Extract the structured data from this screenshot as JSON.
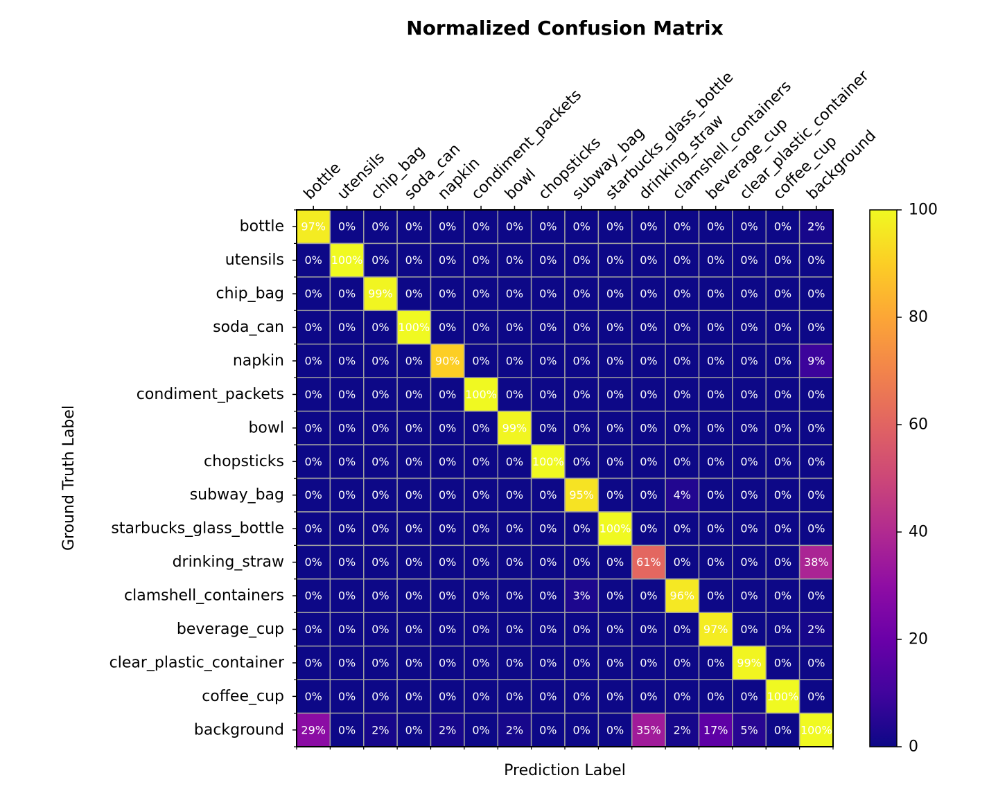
{
  "chart_data": {
    "type": "heatmap",
    "title": "Normalized Confusion Matrix",
    "xlabel": "Prediction Label",
    "ylabel": "Ground Truth Label",
    "x_categories": [
      "bottle",
      "utensils",
      "chip_bag",
      "soda_can",
      "napkin",
      "condiment_packets",
      "bowl",
      "chopsticks",
      "subway_bag",
      "starbucks_glass_bottle",
      "drinking_straw",
      "clamshell_containers",
      "beverage_cup",
      "clear_plastic_container",
      "coffee_cup",
      "background"
    ],
    "y_categories": [
      "bottle",
      "utensils",
      "chip_bag",
      "soda_can",
      "napkin",
      "condiment_packets",
      "bowl",
      "chopsticks",
      "subway_bag",
      "starbucks_glass_bottle",
      "drinking_straw",
      "clamshell_containers",
      "beverage_cup",
      "clear_plastic_container",
      "coffee_cup",
      "background"
    ],
    "values": [
      [
        97,
        0,
        0,
        0,
        0,
        0,
        0,
        0,
        0,
        0,
        0,
        0,
        0,
        0,
        0,
        2
      ],
      [
        0,
        100,
        0,
        0,
        0,
        0,
        0,
        0,
        0,
        0,
        0,
        0,
        0,
        0,
        0,
        0
      ],
      [
        0,
        0,
        99,
        0,
        0,
        0,
        0,
        0,
        0,
        0,
        0,
        0,
        0,
        0,
        0,
        0
      ],
      [
        0,
        0,
        0,
        100,
        0,
        0,
        0,
        0,
        0,
        0,
        0,
        0,
        0,
        0,
        0,
        0
      ],
      [
        0,
        0,
        0,
        0,
        90,
        0,
        0,
        0,
        0,
        0,
        0,
        0,
        0,
        0,
        0,
        9
      ],
      [
        0,
        0,
        0,
        0,
        0,
        100,
        0,
        0,
        0,
        0,
        0,
        0,
        0,
        0,
        0,
        0
      ],
      [
        0,
        0,
        0,
        0,
        0,
        0,
        99,
        0,
        0,
        0,
        0,
        0,
        0,
        0,
        0,
        0
      ],
      [
        0,
        0,
        0,
        0,
        0,
        0,
        0,
        100,
        0,
        0,
        0,
        0,
        0,
        0,
        0,
        0
      ],
      [
        0,
        0,
        0,
        0,
        0,
        0,
        0,
        0,
        95,
        0,
        0,
        4,
        0,
        0,
        0,
        0
      ],
      [
        0,
        0,
        0,
        0,
        0,
        0,
        0,
        0,
        0,
        100,
        0,
        0,
        0,
        0,
        0,
        0
      ],
      [
        0,
        0,
        0,
        0,
        0,
        0,
        0,
        0,
        0,
        0,
        61,
        0,
        0,
        0,
        0,
        38
      ],
      [
        0,
        0,
        0,
        0,
        0,
        0,
        0,
        0,
        3,
        0,
        0,
        96,
        0,
        0,
        0,
        0
      ],
      [
        0,
        0,
        0,
        0,
        0,
        0,
        0,
        0,
        0,
        0,
        0,
        0,
        97,
        0,
        0,
        2
      ],
      [
        0,
        0,
        0,
        0,
        0,
        0,
        0,
        0,
        0,
        0,
        0,
        0,
        0,
        99,
        0,
        0
      ],
      [
        0,
        0,
        0,
        0,
        0,
        0,
        0,
        0,
        0,
        0,
        0,
        0,
        0,
        0,
        100,
        0
      ],
      [
        29,
        0,
        2,
        0,
        2,
        0,
        2,
        0,
        0,
        0,
        35,
        2,
        17,
        5,
        0,
        100
      ]
    ],
    "value_suffix": "%",
    "colormap": "plasma",
    "colorbar": {
      "range": [
        0,
        100
      ],
      "ticks": [
        0,
        20,
        40,
        60,
        80,
        100
      ]
    },
    "cell_border_color": "#a0a0a0",
    "grid": true
  }
}
